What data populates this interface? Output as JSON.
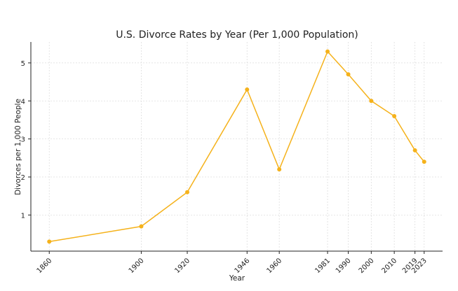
{
  "chart_data": {
    "type": "line",
    "title": "U.S. Divorce Rates by Year (Per 1,000 Population)",
    "xlabel": "Year",
    "ylabel": "Divorces per 1,000 People",
    "x": [
      1860,
      1900,
      1920,
      1946,
      1960,
      1981,
      1990,
      2000,
      2010,
      2019,
      2023
    ],
    "xtick_labels": [
      "1860",
      "1900",
      "1920",
      "1946",
      "1960",
      "1981",
      "1990",
      "2000",
      "2010",
      "2019",
      "2023"
    ],
    "series": [
      {
        "values": [
          0.3,
          0.7,
          1.6,
          4.3,
          2.2,
          5.3,
          4.7,
          4.0,
          3.6,
          2.7,
          2.4
        ],
        "color": "#f5b21b",
        "marker": "circle"
      }
    ],
    "yticks": [
      1,
      2,
      3,
      4,
      5
    ],
    "ytick_labels": [
      "1",
      "2",
      "3",
      "4",
      "5"
    ],
    "xlim": [
      1852,
      2031
    ],
    "ylim": [
      0.05,
      5.55
    ],
    "grid": true,
    "legend": "none"
  }
}
